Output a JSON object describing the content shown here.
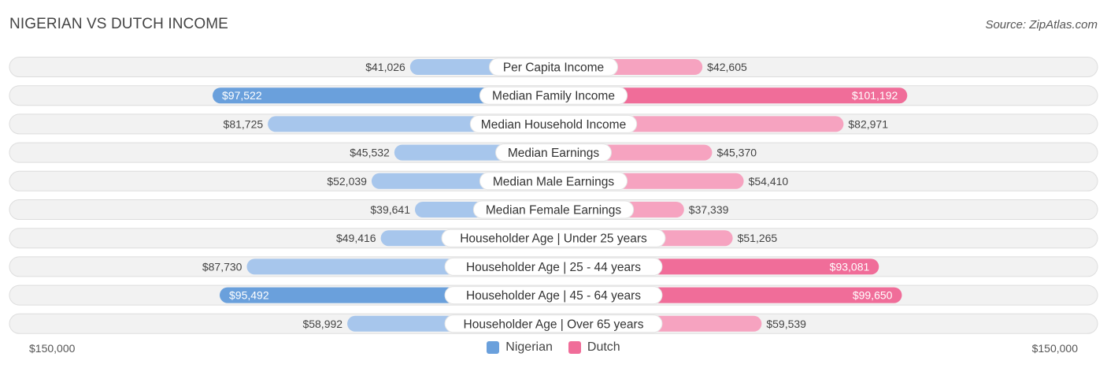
{
  "header": {
    "title": "NIGERIAN VS DUTCH INCOME",
    "source": "Source: ZipAtlas.com"
  },
  "axis": {
    "left_label": "$150,000",
    "right_label": "$150,000"
  },
  "legend": {
    "items": [
      {
        "label": "Nigerian",
        "color": "#6aa0dc"
      },
      {
        "label": "Dutch",
        "color": "#f06d99"
      }
    ]
  },
  "colors": {
    "nigerian_light": "#a7c6ec",
    "nigerian_dark": "#6aa0dc",
    "dutch_light": "#f6a3c0",
    "dutch_dark": "#f06d99",
    "row_background": "#f2f2f2",
    "row_border": "#dddddd"
  },
  "chart_data": {
    "type": "bar",
    "orientation": "diverging-horizontal",
    "title": "NIGERIAN VS DUTCH INCOME",
    "xlim": [
      0,
      150000
    ],
    "categories": [
      "Per Capita Income",
      "Median Family Income",
      "Median Household Income",
      "Median Earnings",
      "Median Male Earnings",
      "Median Female Earnings",
      "Householder Age | Under 25 years",
      "Householder Age | 25 - 44 years",
      "Householder Age | 45 - 64 years",
      "Householder Age | Over 65 years"
    ],
    "series": [
      {
        "name": "Nigerian",
        "side": "left",
        "values": [
          41026,
          97522,
          81725,
          45532,
          52039,
          39641,
          49416,
          87730,
          95492,
          58992
        ],
        "labels": [
          "$41,026",
          "$97,522",
          "$81,725",
          "$45,532",
          "$52,039",
          "$39,641",
          "$49,416",
          "$87,730",
          "$95,492",
          "$58,992"
        ],
        "label_inside": [
          false,
          true,
          false,
          false,
          false,
          false,
          false,
          false,
          true,
          false
        ]
      },
      {
        "name": "Dutch",
        "side": "right",
        "values": [
          42605,
          101192,
          82971,
          45370,
          54410,
          37339,
          51265,
          93081,
          99650,
          59539
        ],
        "labels": [
          "$42,605",
          "$101,192",
          "$82,971",
          "$45,370",
          "$54,410",
          "$37,339",
          "$51,265",
          "$93,081",
          "$99,650",
          "$59,539"
        ],
        "label_inside": [
          false,
          true,
          false,
          false,
          false,
          false,
          false,
          true,
          true,
          false
        ]
      }
    ],
    "legend_position": "bottom-center"
  }
}
